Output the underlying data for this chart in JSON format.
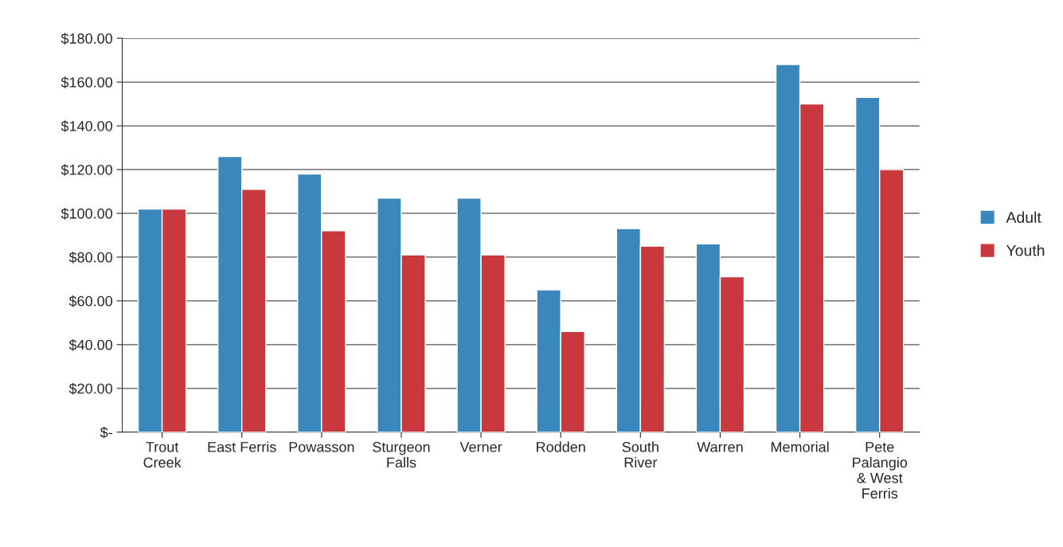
{
  "chart_data": {
    "type": "bar",
    "categories": [
      "Trout\nCreek",
      "East Ferris",
      "Powasson",
      "Sturgeon\nFalls",
      "Verner",
      "Rodden",
      "South\nRiver",
      "Warren",
      "Memorial",
      "Pete\nPalangio\n& West\nFerris"
    ],
    "series": [
      {
        "name": "Adult",
        "color": "#3a87bd",
        "values": [
          102,
          126,
          118,
          107,
          107,
          65,
          93,
          86,
          168,
          153
        ]
      },
      {
        "name": "Youth",
        "color": "#c8383c",
        "values": [
          102,
          111,
          92,
          81,
          81,
          46,
          85,
          71,
          150,
          120
        ]
      }
    ],
    "ylim": [
      0,
      180
    ],
    "yticks": [
      {
        "value": 0,
        "label": "$-"
      },
      {
        "value": 20,
        "label": "$20.00"
      },
      {
        "value": 40,
        "label": "$40.00"
      },
      {
        "value": 60,
        "label": "$60.00"
      },
      {
        "value": 80,
        "label": "$80.00"
      },
      {
        "value": 100,
        "label": "$100.00"
      },
      {
        "value": 120,
        "label": "$120.00"
      },
      {
        "value": 140,
        "label": "$140.00"
      },
      {
        "value": 160,
        "label": "$160.00"
      },
      {
        "value": 180,
        "label": "$180.00"
      }
    ],
    "grid": "y",
    "legend": "right"
  }
}
